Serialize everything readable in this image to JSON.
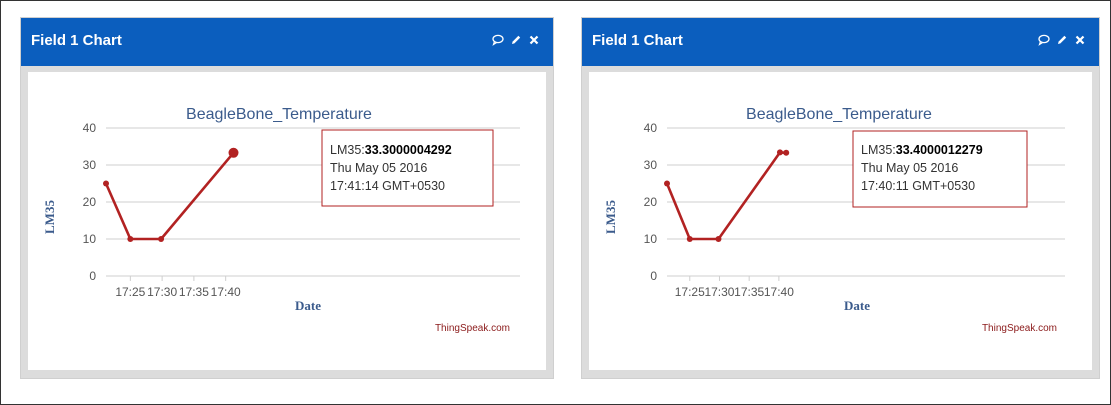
{
  "widgets": [
    {
      "header_title": "Field 1 Chart",
      "icons": [
        "comment-icon",
        "edit-icon",
        "close-icon"
      ],
      "tooltip": {
        "series_label": "LM35:",
        "value": "33.3000004292",
        "date": "Thu May 05 2016",
        "time": "17:41:14 GMT+0530"
      },
      "credit": "ThingSpeak.com"
    },
    {
      "header_title": "Field 1 Chart",
      "icons": [
        "comment-icon",
        "edit-icon",
        "close-icon"
      ],
      "tooltip": {
        "series_label": "LM35:",
        "value": "33.4000012279",
        "date": "Thu May 05 2016",
        "time": "17:40:11 GMT+0530"
      },
      "credit": "ThingSpeak.com"
    }
  ],
  "colors": {
    "header_bg": "#0b5ebe",
    "series_line": "#b22222",
    "title_text": "#3b5b8c",
    "credit_text": "#8b1a1a"
  },
  "chart_data": [
    {
      "type": "line",
      "title": "BeagleBone_Temperature",
      "xlabel": "Date",
      "ylabel": "LM35",
      "ylim": [
        0,
        40
      ],
      "yticks": [
        "0",
        "10",
        "20",
        "30",
        "40"
      ],
      "xticks": [
        "17:25",
        "17:30",
        "17:35",
        "17:40"
      ],
      "grid": true,
      "series": [
        {
          "name": "LM35",
          "x": [
            "17:21:10",
            "17:25:00",
            "17:29:50",
            "17:41:14"
          ],
          "y": [
            25,
            10,
            10,
            33.3
          ]
        }
      ]
    },
    {
      "type": "line",
      "title": "BeagleBone_Temperature",
      "xlabel": "Date",
      "ylabel": "LM35",
      "ylim": [
        0,
        40
      ],
      "yticks": [
        "0",
        "10",
        "20",
        "30",
        "40"
      ],
      "xticks": [
        "17:25",
        "17:30",
        "17:35",
        "17:40"
      ],
      "grid": true,
      "series": [
        {
          "name": "LM35",
          "x": [
            "17:21:10",
            "17:25:00",
            "17:29:50",
            "17:40:11",
            "17:41:14"
          ],
          "y": [
            25,
            10,
            10,
            33.4,
            33.3
          ]
        }
      ]
    }
  ]
}
